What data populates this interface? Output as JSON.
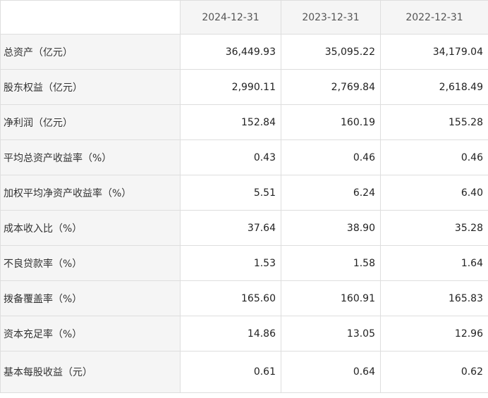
{
  "table": {
    "columns": [
      "",
      "2024-12-31",
      "2023-12-31",
      "2022-12-31"
    ],
    "rows": [
      {
        "label": "总资产（亿元）",
        "values": [
          "36,449.93",
          "35,095.22",
          "34,179.04"
        ]
      },
      {
        "label": "股东权益（亿元）",
        "values": [
          "2,990.11",
          "2,769.84",
          "2,618.49"
        ]
      },
      {
        "label": "净利润（亿元）",
        "values": [
          "152.84",
          "160.19",
          "155.28"
        ]
      },
      {
        "label": "平均总资产收益率（%）",
        "values": [
          "0.43",
          "0.46",
          "0.46"
        ]
      },
      {
        "label": "加权平均净资产收益率（%）",
        "values": [
          "5.51",
          "6.24",
          "6.40"
        ]
      },
      {
        "label": "成本收入比（%）",
        "values": [
          "37.64",
          "38.90",
          "35.28"
        ]
      },
      {
        "label": "不良贷款率（%）",
        "values": [
          "1.53",
          "1.58",
          "1.64"
        ]
      },
      {
        "label": "拨备覆盖率（%）",
        "values": [
          "165.60",
          "160.91",
          "165.83"
        ]
      },
      {
        "label": "资本充足率（%）",
        "values": [
          "14.86",
          "13.05",
          "12.96"
        ]
      },
      {
        "label": "基本每股收益（元）",
        "values": [
          "0.61",
          "0.64",
          "0.62"
        ]
      }
    ]
  }
}
